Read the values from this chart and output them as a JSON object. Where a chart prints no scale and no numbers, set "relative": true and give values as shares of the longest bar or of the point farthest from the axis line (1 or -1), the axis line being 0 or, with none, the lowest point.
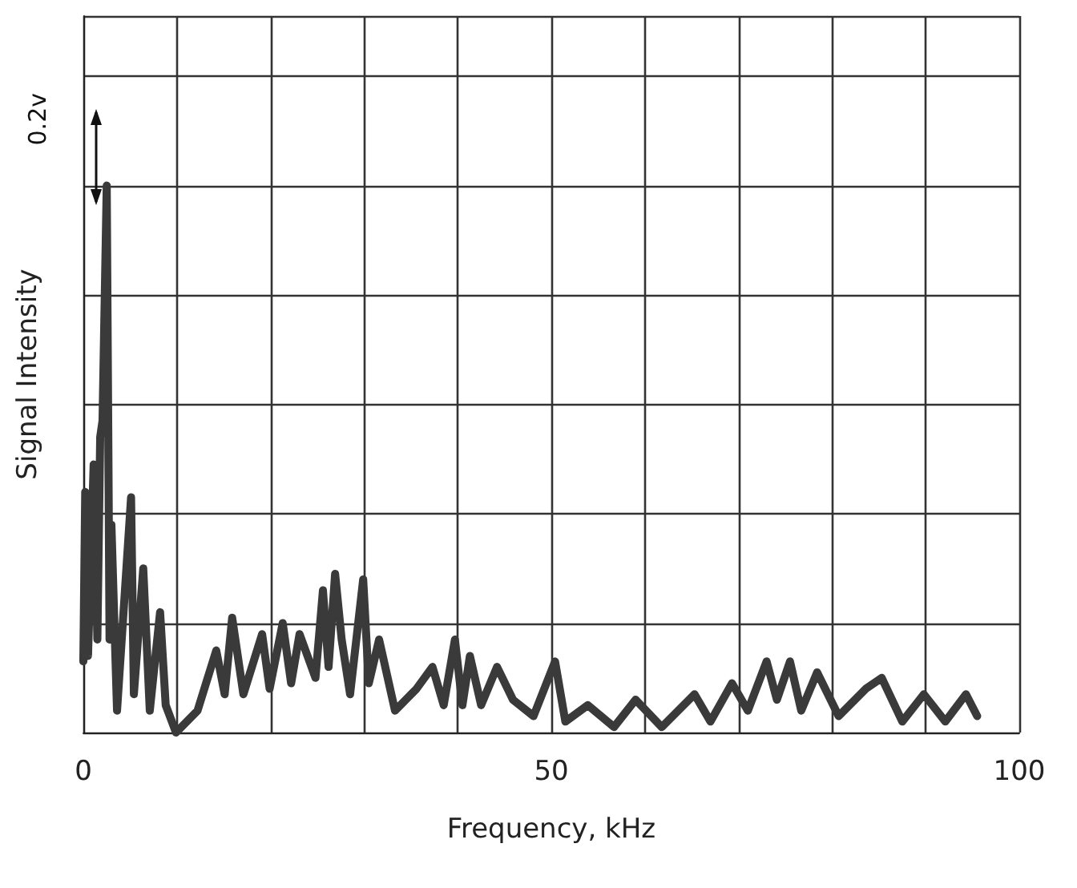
{
  "chart_data": {
    "type": "line",
    "xlabel": "Frequency, kHz",
    "ylabel": "Signal Intensity",
    "annotations": [
      "0.2v"
    ],
    "relative": true,
    "grid": true,
    "marker": "none",
    "line_style": "solid",
    "xlim": [
      0,
      100
    ],
    "xticks": [
      0,
      {
        "value": 10,
        "label": null
      },
      {
        "value": 20,
        "label": null
      },
      {
        "value": 30,
        "label": null
      },
      {
        "value": 40,
        "label": null
      },
      50,
      {
        "value": 60,
        "label": null
      },
      {
        "value": 70,
        "label": null
      },
      {
        "value": 80,
        "label": null
      },
      {
        "value": 90,
        "label": null
      },
      100
    ],
    "series": [
      {
        "color": "#3a3a3a",
        "x": [
          0,
          0.2,
          0.5,
          1.1,
          1.5,
          1.8,
          2.05,
          2.5,
          2.8,
          3.0,
          3.6,
          5.1,
          5.4,
          6.4,
          7.1,
          8.2,
          8.8,
          9.9,
          12.2,
          14.2,
          15.1,
          15.9,
          17.1,
          19.1,
          19.9,
          21.3,
          22.2,
          23.1,
          24.8,
          25.6,
          26.2,
          26.9,
          27.6,
          28.5,
          29.9,
          30.5,
          31.6,
          33.3,
          35.6,
          37.3,
          38.5,
          39.7,
          40.5,
          41.3,
          42.5,
          44.2,
          45.9,
          48.1,
          50.4,
          51.5,
          53.9,
          56.7,
          59.0,
          61.8,
          65.3,
          67.0,
          69.3,
          71.0,
          73.0,
          74.1,
          75.5,
          76.7,
          78.4,
          80.7,
          83.6,
          85.3,
          87.5,
          89.8,
          92.1,
          94.3,
          95.5
        ],
        "values": [
          0.13,
          0.44,
          0.14,
          0.49,
          0.17,
          0.54,
          0.57,
          1.0,
          0.17,
          0.38,
          0.04,
          0.43,
          0.07,
          0.3,
          0.04,
          0.22,
          0.05,
          0,
          0.04,
          0.15,
          0.07,
          0.21,
          0.07,
          0.18,
          0.08,
          0.2,
          0.09,
          0.18,
          0.1,
          0.26,
          0.12,
          0.29,
          0.17,
          0.07,
          0.28,
          0.09,
          0.17,
          0.04,
          0.08,
          0.12,
          0.05,
          0.17,
          0.05,
          0.14,
          0.05,
          0.12,
          0.06,
          0.03,
          0.13,
          0.02,
          0.05,
          0.01,
          0.06,
          0.01,
          0.07,
          0.02,
          0.09,
          0.04,
          0.13,
          0.06,
          0.13,
          0.04,
          0.11,
          0.03,
          0.08,
          0.1,
          0.02,
          0.07,
          0.02,
          0.07,
          0.03
        ]
      }
    ]
  }
}
